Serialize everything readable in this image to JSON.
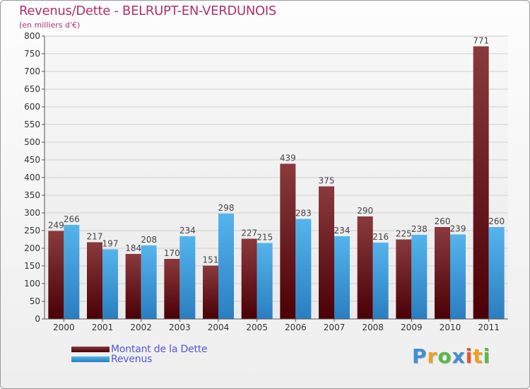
{
  "chart_data": {
    "type": "bar",
    "title": "Revenus/Dette - BELRUPT-EN-VERDUNOIS",
    "subtitle": "(en milliers d'€)",
    "categories": [
      "2000",
      "2001",
      "2002",
      "2003",
      "2004",
      "2005",
      "2006",
      "2007",
      "2008",
      "2009",
      "2010",
      "2011"
    ],
    "series": [
      {
        "name": "Montant de la Dette",
        "values": [
          249,
          217,
          184,
          170,
          151,
          227,
          439,
          375,
          290,
          225,
          260,
          771
        ],
        "color": "#7a1c22"
      },
      {
        "name": "Revenus",
        "values": [
          266,
          197,
          208,
          234,
          298,
          215,
          283,
          234,
          216,
          238,
          239,
          260
        ],
        "color": "#3d9ad8"
      }
    ],
    "ylim": [
      0,
      800
    ],
    "yticks": [
      "0",
      "50",
      "100",
      "150",
      "200",
      "250",
      "300",
      "350",
      "400",
      "450",
      "500",
      "550",
      "600",
      "650",
      "700",
      "750",
      "800"
    ],
    "xlabel": "",
    "ylabel": "",
    "grid": true,
    "legend_position": "bottom-left"
  },
  "logo": {
    "text": "Proxiti",
    "letters": [
      {
        "char": "P",
        "color": "#3f8fd6"
      },
      {
        "char": "r",
        "color": "#f0a020"
      },
      {
        "char": "o",
        "color": "#5cb848"
      },
      {
        "char": "x",
        "color": "#3f8fd6"
      },
      {
        "char": "i",
        "color": "#e8542c"
      },
      {
        "char": "t",
        "color": "#f0a020"
      },
      {
        "char": "i",
        "color": "#5cb848"
      }
    ]
  }
}
